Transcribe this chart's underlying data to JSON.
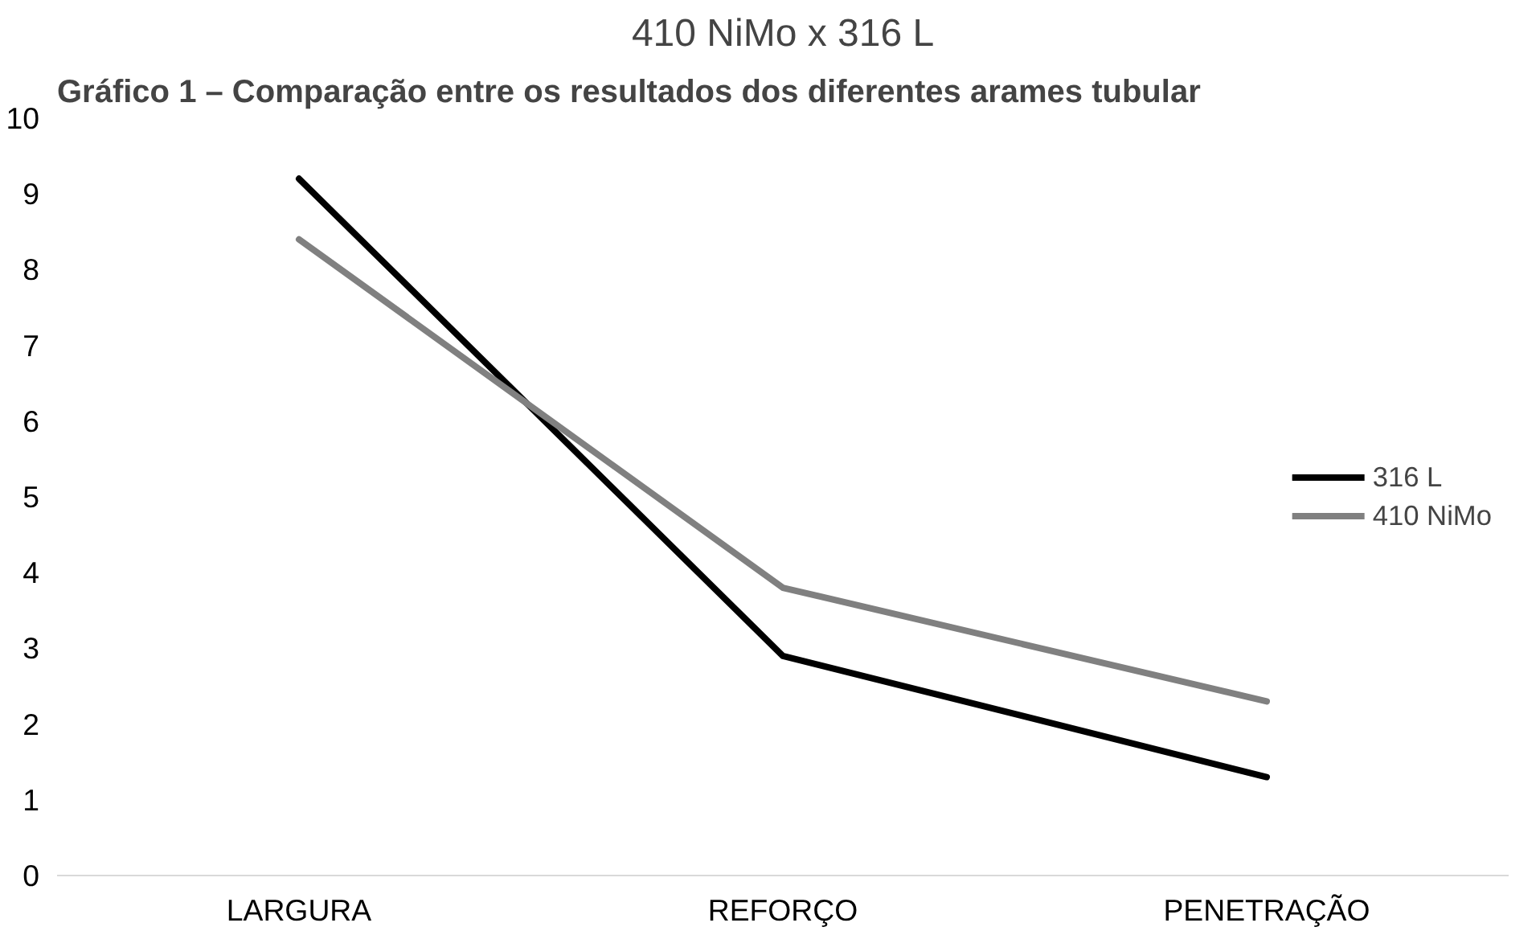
{
  "chart_data": {
    "type": "line",
    "title": "410 NiMo x 316 L",
    "annotations": [
      "Gráfico 1 – Comparação entre os resultados dos diferentes arames tubular"
    ],
    "categories": [
      "LARGURA",
      "REFORÇO",
      "PENETRAÇÃO"
    ],
    "series": [
      {
        "name": "316 L",
        "color": "#000000",
        "values": [
          9.2,
          2.9,
          1.3
        ]
      },
      {
        "name": "410 NiMo",
        "color": "#808080",
        "values": [
          8.4,
          3.8,
          2.3
        ]
      }
    ],
    "ylim": [
      0,
      10
    ],
    "yticks": [
      0,
      1,
      2,
      3,
      4,
      5,
      6,
      7,
      8,
      9,
      10
    ],
    "grid": false,
    "legend": "right",
    "marker": "none",
    "line_style": "solid"
  }
}
